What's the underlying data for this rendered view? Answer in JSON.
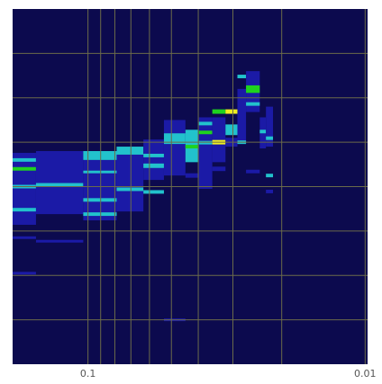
{
  "chart_data": {
    "type": "heatmap",
    "xscale": "log",
    "xlim": [
      0.187,
      0.0098
    ],
    "xticks": [
      0.1,
      0.01
    ],
    "xgrid": [
      0.09,
      0.08,
      0.07,
      0.06,
      0.05,
      0.04,
      0.03,
      0.02
    ],
    "ylim": [
      0,
      8
    ],
    "ygrid": [
      1,
      2,
      3,
      4,
      5,
      6,
      7
    ],
    "grid": true,
    "background": "#0c0a4e",
    "grid_color": "#6b6b4a",
    "colors": [
      "#1b1aa6",
      "#22c2cc",
      "#1fd21f",
      "#f0f020"
    ],
    "cells": [
      [
        0.187,
        0.154,
        3.14,
        4.76,
        1
      ],
      [
        0.187,
        0.154,
        4.56,
        4.64,
        2
      ],
      [
        0.187,
        0.154,
        4.36,
        4.44,
        3
      ],
      [
        0.187,
        0.154,
        3.96,
        4.04,
        2
      ],
      [
        0.187,
        0.154,
        3.44,
        3.52,
        2
      ],
      [
        0.187,
        0.154,
        2.82,
        2.88,
        1
      ],
      [
        0.187,
        0.154,
        2.02,
        2.08,
        1
      ],
      [
        0.154,
        0.104,
        3.38,
        4.8,
        1
      ],
      [
        0.154,
        0.104,
        4.0,
        4.08,
        2
      ],
      [
        0.154,
        0.104,
        2.74,
        2.8,
        1
      ],
      [
        0.104,
        0.0788,
        3.24,
        4.6,
        1
      ],
      [
        0.104,
        0.0788,
        4.6,
        4.8,
        2
      ],
      [
        0.104,
        0.0788,
        3.66,
        3.74,
        2
      ],
      [
        0.104,
        0.0788,
        3.34,
        3.42,
        2
      ],
      [
        0.104,
        0.0788,
        4.3,
        4.36,
        2
      ],
      [
        0.0788,
        0.0631,
        3.44,
        4.72,
        1
      ],
      [
        0.0788,
        0.0631,
        4.72,
        4.9,
        2
      ],
      [
        0.0788,
        0.0631,
        3.9,
        3.98,
        2
      ],
      [
        0.0631,
        0.0532,
        4.15,
        5.06,
        1
      ],
      [
        0.0631,
        0.0532,
        4.42,
        4.52,
        2
      ],
      [
        0.0631,
        0.0532,
        3.84,
        3.92,
        2
      ],
      [
        0.0631,
        0.0532,
        4.66,
        4.74,
        2
      ],
      [
        0.0532,
        0.0445,
        4.25,
        5.5,
        1
      ],
      [
        0.0532,
        0.0445,
        4.96,
        5.2,
        2
      ],
      [
        0.0532,
        0.0445,
        0.97,
        1.03,
        1
      ],
      [
        0.0445,
        0.0398,
        4.55,
        5.28,
        2
      ],
      [
        0.0445,
        0.0398,
        4.86,
        4.94,
        3
      ],
      [
        0.0445,
        0.0398,
        4.2,
        4.3,
        1
      ],
      [
        0.0398,
        0.0356,
        3.95,
        5.56,
        1
      ],
      [
        0.0398,
        0.0356,
        5.18,
        5.26,
        3
      ],
      [
        0.0398,
        0.0356,
        5.38,
        5.46,
        2
      ],
      [
        0.0398,
        0.0356,
        4.95,
        5.03,
        2
      ],
      [
        0.0356,
        0.0319,
        4.55,
        5.56,
        1
      ],
      [
        0.0356,
        0.0319,
        5.64,
        5.74,
        3
      ],
      [
        0.0356,
        0.0319,
        4.95,
        5.05,
        4
      ],
      [
        0.0356,
        0.0319,
        4.35,
        4.45,
        1
      ],
      [
        0.0319,
        0.0289,
        5.16,
        5.4,
        2
      ],
      [
        0.0319,
        0.0289,
        5.64,
        5.74,
        4
      ],
      [
        0.0319,
        0.0289,
        4.9,
        5.1,
        1
      ],
      [
        0.0289,
        0.0269,
        4.96,
        6.2,
        1
      ],
      [
        0.0289,
        0.0269,
        6.44,
        6.52,
        2
      ],
      [
        0.0289,
        0.0269,
        4.96,
        5.04,
        2
      ],
      [
        0.0269,
        0.024,
        5.68,
        6.6,
        1
      ],
      [
        0.0269,
        0.024,
        6.11,
        6.28,
        3
      ],
      [
        0.0269,
        0.024,
        5.82,
        5.9,
        2
      ],
      [
        0.0269,
        0.024,
        4.3,
        4.38,
        1
      ],
      [
        0.024,
        0.0228,
        4.86,
        5.56,
        1
      ],
      [
        0.024,
        0.0228,
        5.2,
        5.28,
        2
      ],
      [
        0.0228,
        0.0215,
        4.9,
        5.8,
        1
      ],
      [
        0.0228,
        0.0215,
        4.21,
        4.29,
        2
      ],
      [
        0.0228,
        0.0215,
        3.85,
        3.93,
        1
      ],
      [
        0.0228,
        0.0215,
        5.05,
        5.13,
        2
      ]
    ]
  }
}
